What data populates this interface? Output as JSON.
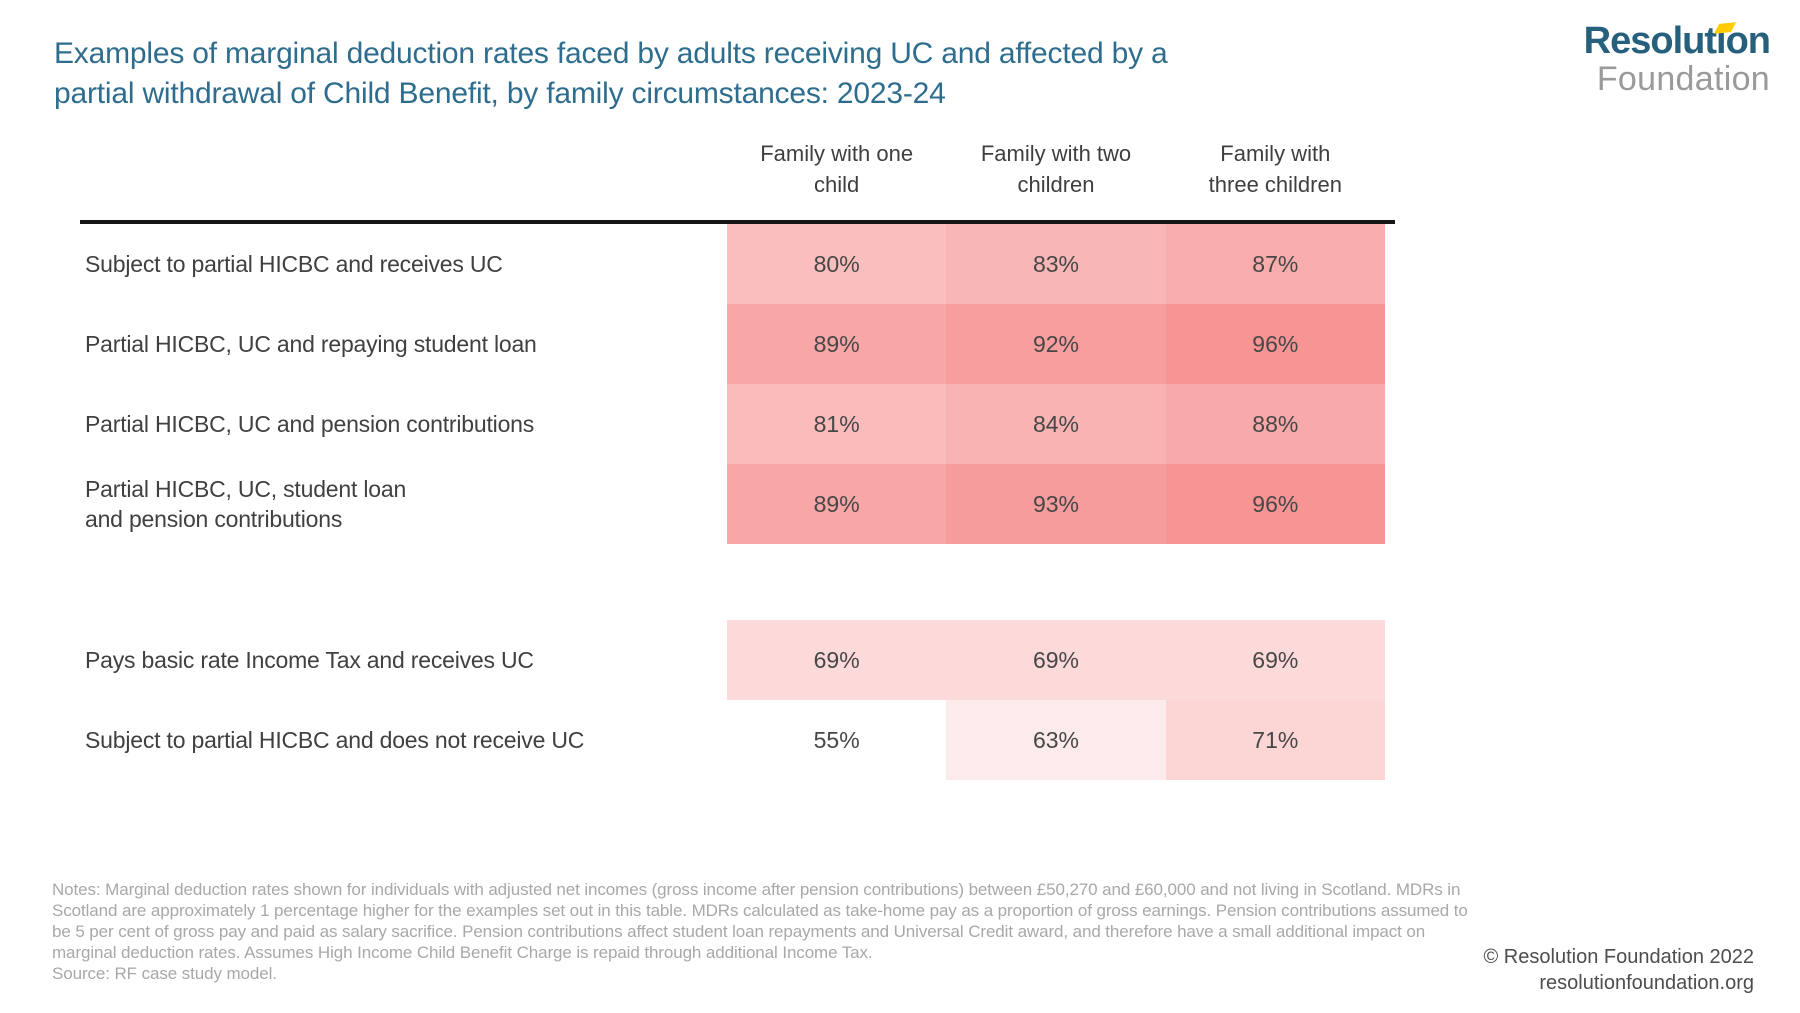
{
  "header": {
    "title": "Examples of marginal deduction rates faced by adults receiving UC and affected by a partial withdrawal of Child Benefit, by family circumstances: 2023-24",
    "title_display": "Examples of marginal deduction rates faced by adults receiving UC and affected by a\npartial withdrawal of Child Benefit, by family circumstances: 2023-24",
    "title_color": "#2e6d8d"
  },
  "logo": {
    "primary": "Resolution",
    "secondary": "Foundation",
    "primary_color": "#26607c",
    "secondary_color": "#9a9a9a",
    "flag_color": "#ffcc00"
  },
  "chart_data": {
    "type": "heatmap",
    "title": "Examples of marginal deduction rates faced by adults receiving UC and affected by a partial withdrawal of Child Benefit, by family circumstances: 2023-24",
    "unit": "%",
    "columns": [
      "Family with one child",
      "Family with two children",
      "Family with three children"
    ],
    "columns_display": [
      "Family with one\nchild",
      "Family with two\nchildren",
      "Family with\nthree children"
    ],
    "rows": [
      {
        "label": "Subject to partial HICBC and receives UC",
        "label_display": "Subject to partial HICBC and receives UC",
        "values": [
          80,
          83,
          87
        ],
        "display": [
          "80%",
          "83%",
          "87%"
        ],
        "cell_colors": [
          "#fabebe",
          "#f9b6b6",
          "#f9acac"
        ]
      },
      {
        "label": "Partial HICBC, UC and repaying student loan",
        "label_display": "Partial HICBC, UC and repaying student loan",
        "values": [
          89,
          92,
          96
        ],
        "display": [
          "89%",
          "92%",
          "96%"
        ],
        "cell_colors": [
          "#f8a6a6",
          "#f89e9e",
          "#f79494"
        ]
      },
      {
        "label": "Partial HICBC, UC and pension contributions",
        "label_display": "Partial HICBC, UC and pension contributions",
        "values": [
          81,
          84,
          88
        ],
        "display": [
          "81%",
          "84%",
          "88%"
        ],
        "cell_colors": [
          "#fabbbb",
          "#f9b3b3",
          "#f8a9a9"
        ]
      },
      {
        "label": "Partial HICBC, UC, student loan and pension contributions",
        "label_display": "Partial HICBC, UC, student loan\nand pension contributions",
        "values": [
          89,
          93,
          96
        ],
        "display": [
          "89%",
          "93%",
          "96%"
        ],
        "cell_colors": [
          "#f8a6a6",
          "#f79c9c",
          "#f79494"
        ]
      },
      {
        "label": "Pays basic rate Income Tax and receives UC",
        "label_display": "Pays basic rate Income Tax and receives UC",
        "values": [
          69,
          69,
          69
        ],
        "display": [
          "69%",
          "69%",
          "69%"
        ],
        "cell_colors": [
          "#fcdada",
          "#fcdada",
          "#fcdada"
        ]
      },
      {
        "label": "Subject to partial HICBC and does not receive UC",
        "label_display": "Subject to partial HICBC and does not receive UC",
        "values": [
          55,
          63,
          71
        ],
        "display": [
          "55%",
          "63%",
          "71%"
        ],
        "cell_colors": [
          "transparent",
          "#fdeaea",
          "#fcd5d5"
        ]
      }
    ],
    "row_groups": [
      [
        0,
        1,
        2,
        3
      ],
      [
        4,
        5
      ]
    ],
    "color_scale": {
      "min_value": 55,
      "max_value": 96,
      "min_color": "#ffffff",
      "max_color": "#f79494"
    },
    "legend_position": "none",
    "grid": false
  },
  "footer": {
    "notes": "Notes: Marginal deduction rates shown for individuals with adjusted net incomes (gross income after pension contributions) between £50,270 and £60,000 and not living in Scotland. MDRs in Scotland are approximately 1 percentage higher for the examples set out in this table. MDRs calculated as take-home pay as a proportion of gross earnings. Pension contributions assumed to be 5 per cent of gross pay and paid as salary sacrifice. Pension contributions affect student loan repayments and Universal Credit award, and therefore have a small additional impact on marginal deduction rates. Assumes High Income Child Benefit Charge is repaid through additional Income Tax.",
    "source": "Source: RF case study model.",
    "copyright_line1": "© Resolution Foundation 2022",
    "copyright_line2": "resolutionfoundation.org"
  }
}
